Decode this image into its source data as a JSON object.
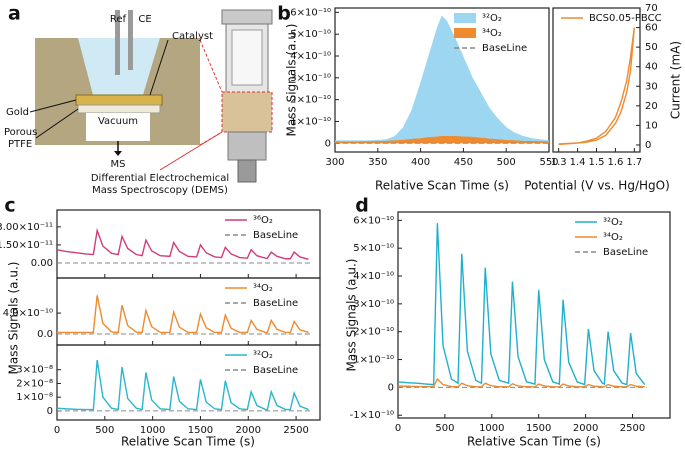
{
  "diagram": {
    "label": "a",
    "ref": "Ref",
    "ce": "CE",
    "catalyst": "Catalyst",
    "gold": "Gold",
    "porous": "Porous",
    "ptfe": "PTFE",
    "vacuum": "Vacuum",
    "ms": "MS",
    "caption": [
      "Differential Electrochemical",
      "Mass Spectroscopy (DEMS)"
    ]
  },
  "chart_data": [
    {
      "type": "area",
      "label": "b",
      "xlabel": "Relative Scan Time (s)",
      "ylabel": "Mass Signals (a.u.)",
      "x": [
        300,
        320,
        340,
        360,
        370,
        380,
        390,
        400,
        410,
        420,
        425,
        430,
        440,
        450,
        460,
        470,
        480,
        490,
        500,
        510,
        520,
        530,
        550
      ],
      "xlim": [
        300,
        550
      ],
      "xticks": [
        300,
        350,
        400,
        450,
        500,
        550
      ],
      "ylim": [
        -4e-11,
        6.2e-10
      ],
      "yticks": [
        0,
        {
          "value": 1e-10,
          "label": "1×10⁻¹⁰"
        },
        {
          "value": 2e-10,
          "label": "2×10⁻¹⁰"
        },
        {
          "value": 3e-10,
          "label": "3×10⁻¹⁰"
        },
        {
          "value": 4e-10,
          "label": "4×10⁻¹⁰"
        },
        {
          "value": 5e-10,
          "label": "5×10⁻¹⁰"
        },
        {
          "value": 6e-10,
          "label": "6×10⁻¹⁰"
        }
      ],
      "legend": "upper right",
      "series": [
        {
          "name": "³²O₂",
          "color": "#9dd6f0",
          "values": [
            1e-11,
            1e-11,
            1e-11,
            1.5e-11,
            3e-11,
            7e-11,
            1.5e-10,
            2.7e-10,
            4e-10,
            5.3e-10,
            5.8e-10,
            5.6e-10,
            4.8e-10,
            3.9e-10,
            3e-10,
            2.3e-10,
            1.6e-10,
            1.1e-10,
            7e-11,
            4.5e-11,
            3e-11,
            2e-11,
            1e-11
          ]
        },
        {
          "name": "³⁴O₂",
          "color": "#ef8a2e",
          "values": [
            5e-12,
            5e-12,
            6e-12,
            8e-12,
            1e-11,
            1.3e-11,
            1.7e-11,
            2e-11,
            2.5e-11,
            2.8e-11,
            3e-11,
            3e-11,
            3e-11,
            2.8e-11,
            2.6e-11,
            2.2e-11,
            1.8e-11,
            1.5e-11,
            1.2e-11,
            1e-11,
            8e-12,
            7e-12,
            5e-12
          ]
        },
        {
          "name": "BaseLine",
          "color": "#8a8a8a",
          "dash": true,
          "x": [
            300,
            550
          ],
          "values": [
            0,
            0
          ]
        }
      ]
    },
    {
      "type": "line",
      "ylabel": "Current (mA)",
      "xlabel": "Potential (V vs. Hg/HgO)",
      "y_axis": "right",
      "x": [
        1.3,
        1.4,
        1.45,
        1.5,
        1.55,
        1.6,
        1.63,
        1.66,
        1.68,
        1.7,
        1.68,
        1.66,
        1.63,
        1.6,
        1.55,
        1.5,
        1.45,
        1.4,
        1.3
      ],
      "xlim": [
        1.27,
        1.73
      ],
      "xticks": [
        1.3,
        1.4,
        1.5,
        1.6,
        1.7
      ],
      "ylim": [
        -3.6,
        70
      ],
      "yticks": [
        0,
        10,
        20,
        30,
        40,
        50,
        60,
        70
      ],
      "legend": "upper left",
      "series": [
        {
          "name": "BCS0.05-PBCC",
          "color": "#ef8a2e",
          "values": [
            0.5,
            1,
            1.5,
            2.5,
            5,
            11,
            17,
            27,
            38,
            60,
            45,
            33,
            22,
            14,
            7,
            3.5,
            2,
            1,
            0.3
          ]
        }
      ]
    },
    {
      "type": "line",
      "label": "c",
      "xlabel": "Relative Scan Time (s)",
      "ylabel": "Mass Signals (a.u.)",
      "x": [
        0,
        100,
        200,
        300,
        380,
        420,
        480,
        570,
        640,
        680,
        740,
        830,
        890,
        930,
        990,
        1080,
        1180,
        1220,
        1280,
        1370,
        1460,
        1500,
        1560,
        1650,
        1720,
        1760,
        1820,
        1910,
        1990,
        2030,
        2090,
        2180,
        2200,
        2240,
        2300,
        2390,
        2440,
        2480,
        2540,
        2630
      ],
      "xlim": [
        0,
        2750
      ],
      "xticks": [
        0,
        500,
        1000,
        1500,
        2000,
        2500
      ],
      "subplots": [
        {
          "ylim": [
            -1.25e-11,
            4.4e-11
          ],
          "yticks": [
            {
              "value": 3e-11,
              "label": "3.00×10⁻¹¹"
            },
            {
              "value": 1.5e-11,
              "label": "1.50×10⁻¹¹"
            },
            {
              "value": 0,
              "label": "0.00"
            }
          ],
          "legend": "upper right",
          "series": [
            {
              "name": "³⁶O₂",
              "color": "#d23c7c",
              "values": [
                1.1e-11,
                9.5e-12,
                8.5e-12,
                7.5e-12,
                7e-12,
                2.7e-11,
                1.4e-11,
                8e-12,
                7e-12,
                2.2e-11,
                1.2e-11,
                7e-12,
                6e-12,
                1.9e-11,
                1e-11,
                6e-12,
                5.5e-12,
                1.7e-11,
                9.5e-12,
                5.5e-12,
                5e-12,
                1.5e-11,
                8.5e-12,
                5e-12,
                4.5e-12,
                1.3e-11,
                7.5e-12,
                4.5e-12,
                4e-12,
                1.1e-11,
                6e-12,
                4e-12,
                4e-12,
                9e-12,
                5.5e-12,
                3.5e-12,
                3.5e-12,
                9e-12,
                5e-12,
                3e-12
              ]
            },
            {
              "name": "BaseLine",
              "color": "#8a8a8a",
              "dash": true,
              "x": [
                0,
                2650
              ],
              "values": [
                0,
                0
              ]
            }
          ]
        },
        {
          "ylim": [
            -2.1e-10,
            1.07e-09
          ],
          "yticks": [
            {
              "value": 4e-10,
              "label": "4.0×10⁻¹⁰"
            },
            {
              "value": 0,
              "label": "0.0"
            }
          ],
          "legend": "upper right",
          "series": [
            {
              "name": "³⁴O₂",
              "color": "#ef8a2e",
              "values": [
                3e-11,
                3e-11,
                3e-11,
                3e-11,
                3e-11,
                7.4e-10,
                2e-10,
                4e-11,
                3e-11,
                5.5e-10,
                1.6e-10,
                3.5e-11,
                3e-11,
                4.5e-10,
                1.4e-10,
                3e-11,
                3e-11,
                4.2e-10,
                1.3e-10,
                3e-11,
                3e-11,
                3.8e-10,
                1.2e-10,
                3e-11,
                3e-11,
                3.6e-10,
                1.1e-10,
                3e-11,
                3e-11,
                2.6e-10,
                9e-11,
                3e-11,
                3e-11,
                2.6e-10,
                9e-11,
                3e-11,
                3e-11,
                2.4e-10,
                8e-11,
                3e-11
              ]
            },
            {
              "name": "BaseLine",
              "color": "#8a8a8a",
              "dash": true,
              "x": [
                0,
                2650
              ],
              "values": [
                0,
                0
              ]
            }
          ]
        },
        {
          "ylim": [
            -6.6e-09,
            4.8e-08
          ],
          "yticks": [
            {
              "value": 3e-08,
              "label": "3×10⁻⁸"
            },
            {
              "value": 2e-08,
              "label": "2×10⁻⁸"
            },
            {
              "value": 1e-08,
              "label": "1×10⁻⁸"
            },
            0
          ],
          "legend": "upper right",
          "series": [
            {
              "name": "³²O₂",
              "color": "#2bb5cf",
              "values": [
                2e-09,
                1.5e-09,
                1.2e-09,
                1e-09,
                1e-09,
                3.7e-08,
                1e-08,
                2e-09,
                1e-09,
                3.2e-08,
                9e-09,
                2e-09,
                1e-09,
                2.8e-08,
                8e-09,
                1.5e-09,
                1e-09,
                2.5e-08,
                7e-09,
                1.5e-09,
                1e-09,
                2.3e-08,
                6.5e-09,
                1.5e-09,
                1e-09,
                2.2e-08,
                6e-09,
                1.5e-09,
                1e-09,
                1.4e-08,
                4e-09,
                1e-09,
                1e-09,
                1.4e-08,
                4e-09,
                1e-09,
                1e-09,
                1.3e-08,
                3.5e-09,
                1e-09
              ]
            },
            {
              "name": "BaseLine",
              "color": "#8a8a8a",
              "dash": true,
              "x": [
                0,
                2650
              ],
              "values": [
                0,
                0
              ]
            }
          ]
        }
      ]
    },
    {
      "type": "line",
      "label": "d",
      "xlabel": "Relative Scan Time (s)",
      "ylabel": "Mass Signals (a.u.)",
      "x": [
        0,
        100,
        200,
        300,
        380,
        420,
        480,
        570,
        640,
        680,
        740,
        830,
        890,
        930,
        990,
        1080,
        1180,
        1220,
        1280,
        1370,
        1460,
        1500,
        1560,
        1650,
        1720,
        1760,
        1820,
        1910,
        1990,
        2030,
        2090,
        2180,
        2200,
        2240,
        2300,
        2390,
        2440,
        2480,
        2540,
        2630
      ],
      "xlim": [
        0,
        2900
      ],
      "xticks": [
        0,
        500,
        1000,
        1500,
        2000,
        2500
      ],
      "ylim": [
        -1.1e-10,
        6.3e-10
      ],
      "yticks": [
        {
          "value": -1e-10,
          "label": "-1×10⁻¹⁰"
        },
        0,
        {
          "value": 1e-10,
          "label": "1×10⁻¹⁰"
        },
        {
          "value": 2e-10,
          "label": "2×10⁻¹⁰"
        },
        {
          "value": 3e-10,
          "label": "3×10⁻¹⁰"
        },
        {
          "value": 4e-10,
          "label": "4×10⁻¹⁰"
        },
        {
          "value": 5e-10,
          "label": "5×10⁻¹⁰"
        },
        {
          "value": 6e-10,
          "label": "6×10⁻¹⁰"
        }
      ],
      "legend": "upper right",
      "series": [
        {
          "name": "³²O₂",
          "color": "#1fb0cc",
          "values": [
            2e-11,
            1.7e-11,
            1.5e-11,
            1.2e-11,
            1e-11,
            5.9e-10,
            1.5e-10,
            3e-11,
            1.5e-11,
            4.8e-10,
            1.3e-10,
            2.5e-11,
            1.5e-11,
            4.3e-10,
            1.2e-10,
            2.5e-11,
            1.5e-11,
            3.8e-10,
            1.1e-10,
            2e-11,
            1.2e-11,
            3.5e-10,
            1e-10,
            2e-11,
            1.2e-11,
            3.15e-10,
            9e-11,
            2e-11,
            1e-11,
            2.1e-10,
            6e-11,
            1.5e-11,
            1.2e-11,
            2e-10,
            6e-11,
            1.5e-11,
            1e-11,
            1.95e-10,
            5e-11,
            1e-11
          ]
        },
        {
          "name": "³⁴O₂",
          "color": "#ef8a2e",
          "values": [
            5e-12,
            4e-12,
            3e-12,
            3e-12,
            3e-12,
            3e-11,
            1e-11,
            3e-12,
            2e-12,
            1.5e-11,
            6e-12,
            2e-12,
            2e-12,
            1.5e-11,
            6e-12,
            2e-12,
            2e-12,
            1.3e-11,
            5e-12,
            2e-12,
            2e-12,
            1.2e-11,
            5e-12,
            2e-12,
            2e-12,
            1.2e-11,
            5e-12,
            2e-12,
            2e-12,
            1e-11,
            4e-12,
            2e-12,
            2e-12,
            1e-11,
            4e-12,
            2e-12,
            2e-12,
            1e-11,
            4e-12,
            2e-12
          ]
        },
        {
          "name": "BaseLine",
          "color": "#8a8a8a",
          "dash": true,
          "x": [
            0,
            2650
          ],
          "values": [
            0,
            0
          ]
        }
      ]
    }
  ]
}
